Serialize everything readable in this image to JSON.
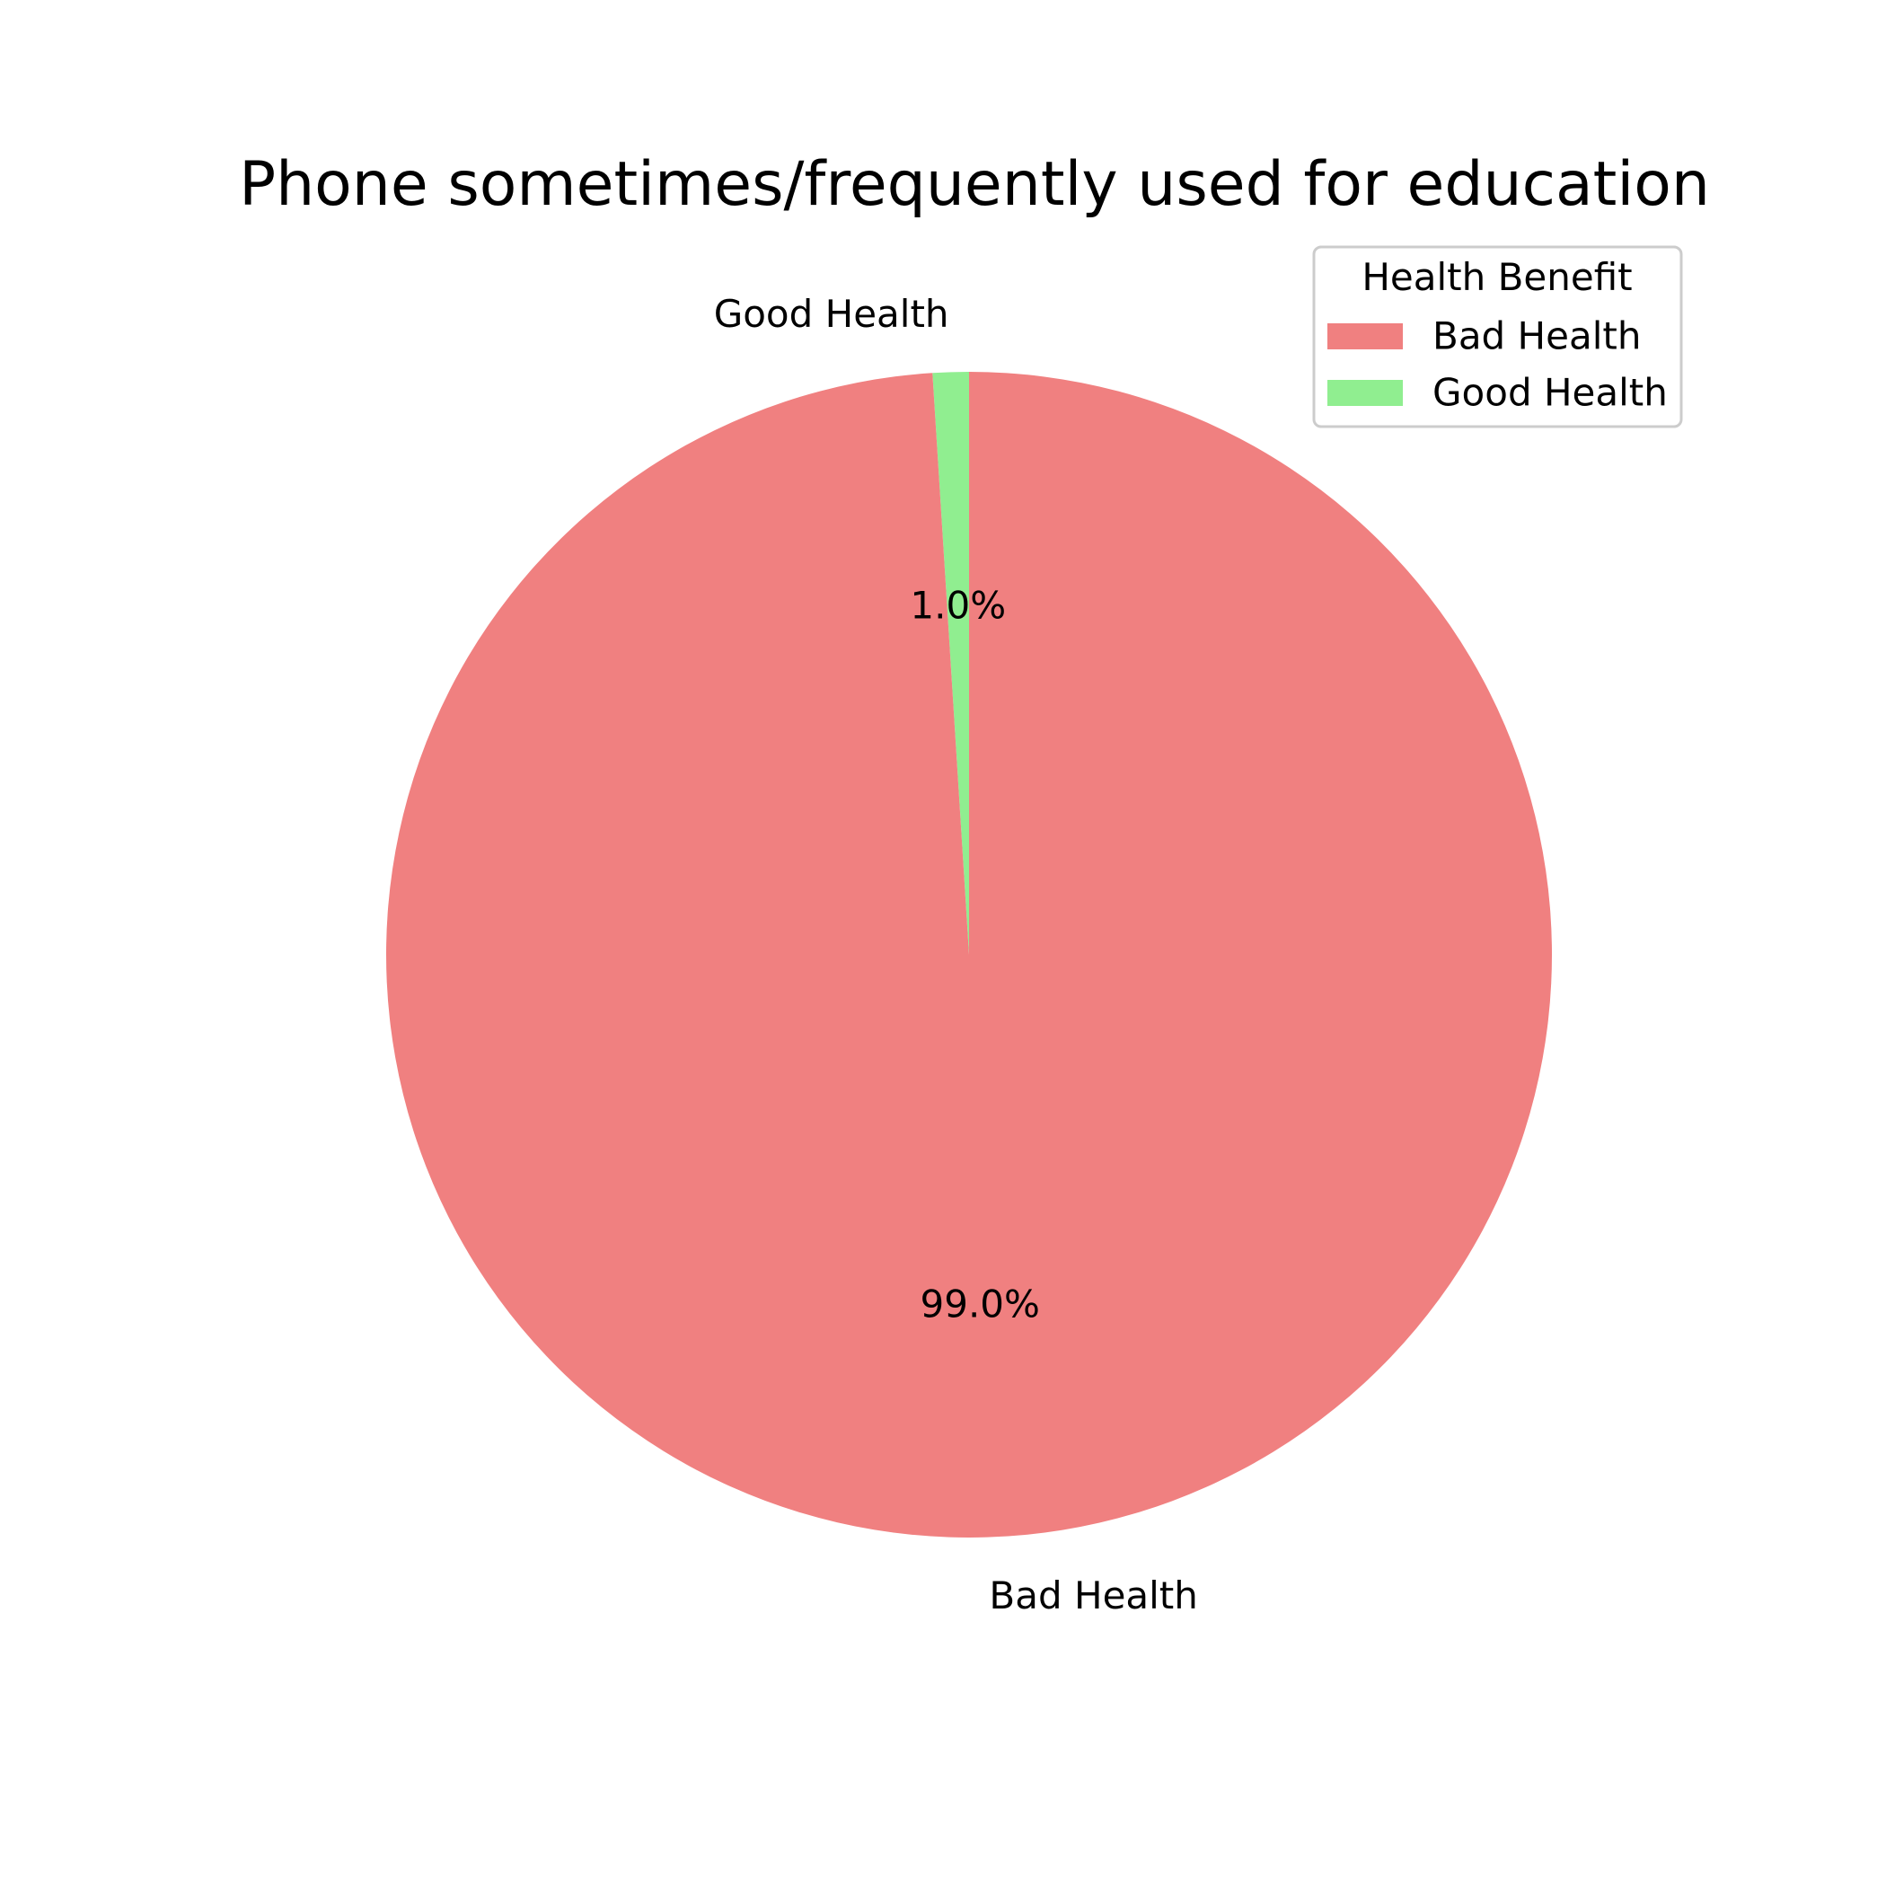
{
  "chart_data": {
    "type": "pie",
    "title": "Phone sometimes/frequently used for education",
    "slices": [
      {
        "label": "Good Health",
        "value": 1.0,
        "pct_label": "1.0%",
        "color": "#90ee90"
      },
      {
        "label": "Bad Health",
        "value": 99.0,
        "pct_label": "99.0%",
        "color": "#f08080"
      }
    ],
    "legend": {
      "title": "Health Benefit",
      "placement": "top-right",
      "entries": [
        {
          "label": "Bad Health",
          "color": "#f08080"
        },
        {
          "label": "Good Health",
          "color": "#90ee90"
        }
      ]
    }
  }
}
